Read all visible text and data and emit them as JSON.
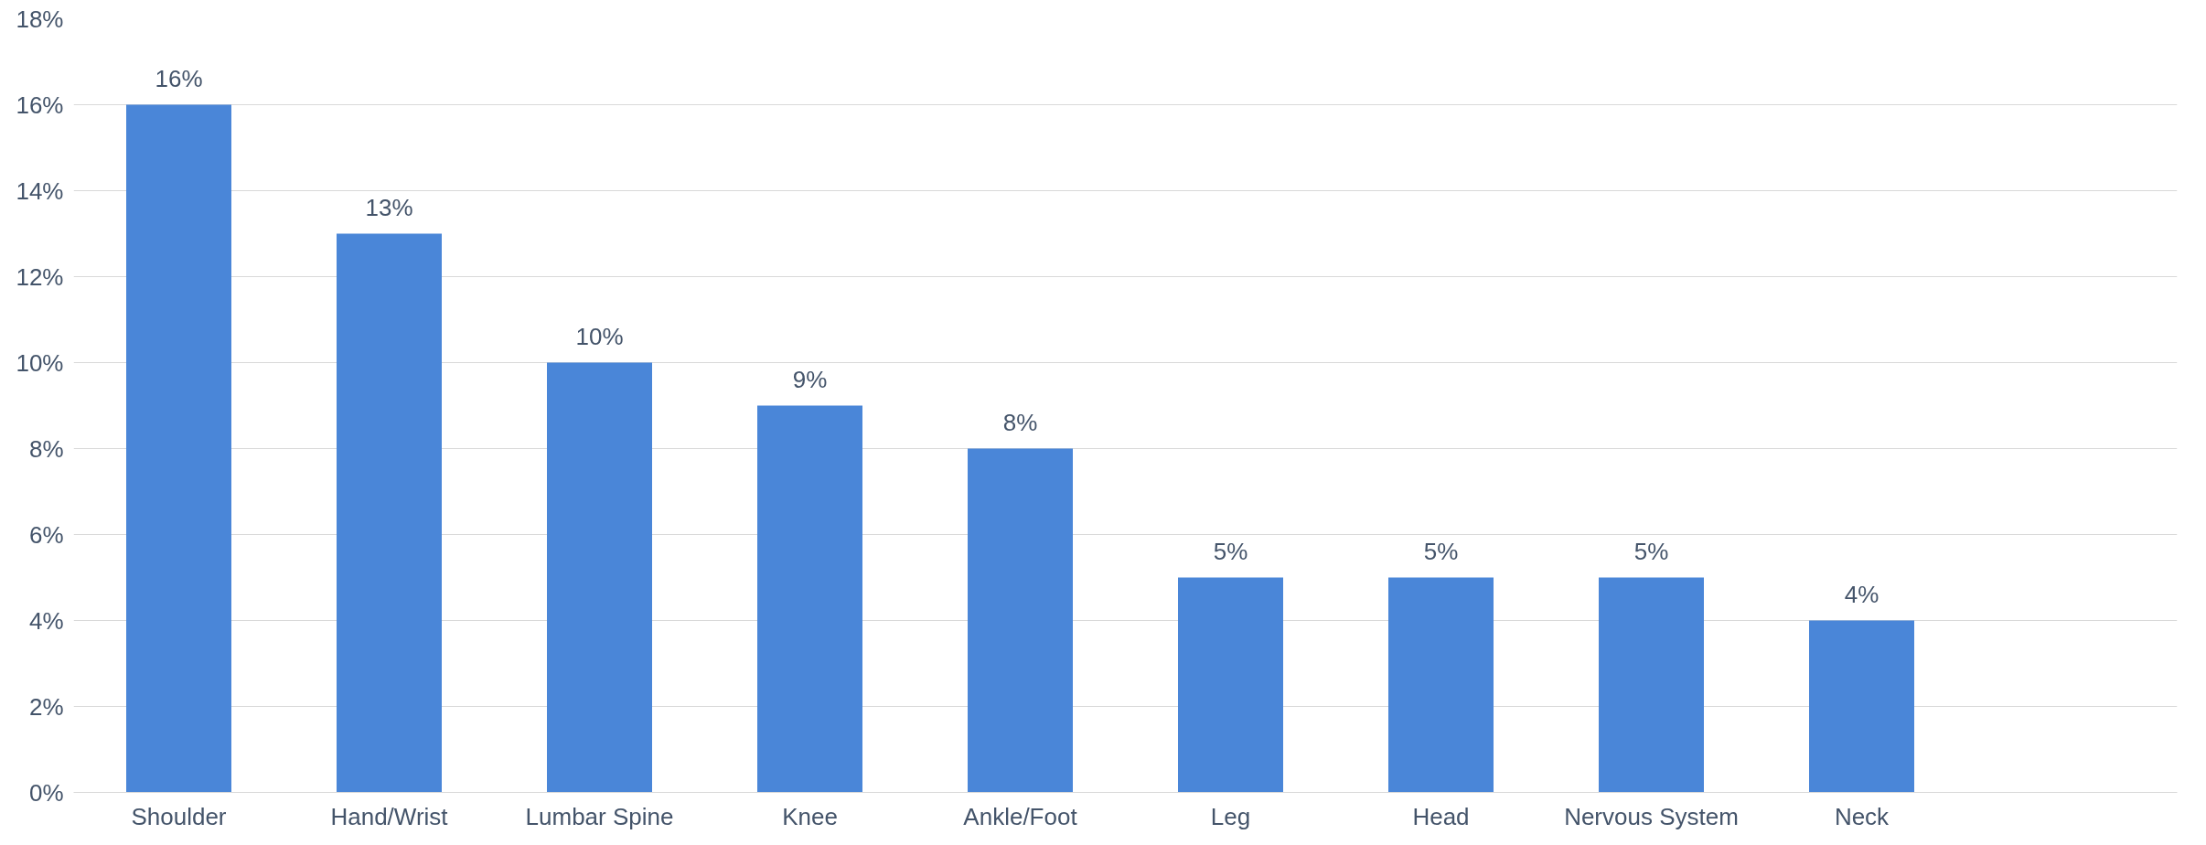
{
  "chart_data": {
    "type": "bar",
    "categories": [
      "Shoulder",
      "Hand/Wrist",
      "Lumbar Spine",
      "Knee",
      "Ankle/Foot",
      "Leg",
      "Head",
      "Nervous System",
      "Neck",
      null
    ],
    "values": [
      16,
      13,
      10,
      9,
      8,
      5,
      5,
      5,
      4,
      null
    ],
    "value_labels": [
      "16%",
      "13%",
      "10%",
      "9%",
      "8%",
      "5%",
      "5%",
      "5%",
      "4%",
      null
    ],
    "color": "#4a86d8",
    "ylim": [
      0,
      18
    ],
    "yticks": [
      {
        "value": 0,
        "label": "0%"
      },
      {
        "value": 2,
        "label": "2%"
      },
      {
        "value": 4,
        "label": "4%"
      },
      {
        "value": 6,
        "label": "6%"
      },
      {
        "value": 8,
        "label": "8%"
      },
      {
        "value": 10,
        "label": "10%"
      },
      {
        "value": 12,
        "label": "12%"
      },
      {
        "value": 14,
        "label": "14%"
      },
      {
        "value": 16,
        "label": "16%"
      },
      {
        "value": 18,
        "label": "18%"
      }
    ],
    "grid": "y"
  }
}
